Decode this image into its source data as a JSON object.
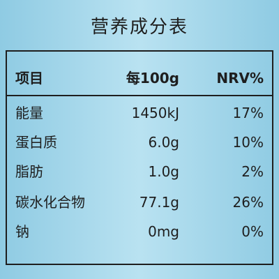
{
  "header": {
    "title": "营养成分表"
  },
  "table": {
    "columns": [
      "项目",
      "每100g",
      "NRV%"
    ],
    "rows": [
      [
        "能量",
        "1450kJ",
        "17%"
      ],
      [
        "蛋白质",
        "6.0g",
        "10%"
      ],
      [
        "脂肪",
        "1.0g",
        "2%"
      ],
      [
        "碳水化合物",
        "77.1g",
        "26%"
      ],
      [
        "钠",
        "0mg",
        "0%"
      ]
    ]
  }
}
